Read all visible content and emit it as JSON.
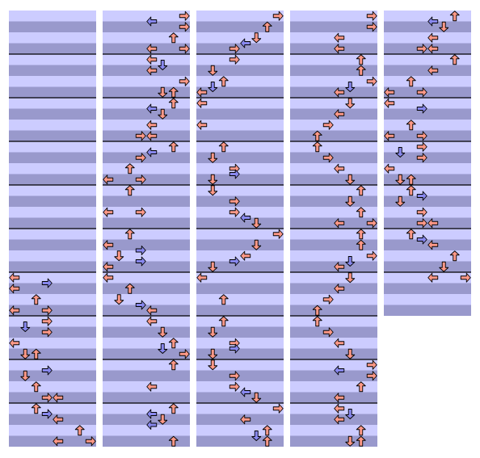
{
  "chart": {
    "lanes_per_panel": 8,
    "beats_per_measure": 4,
    "quarter_color": "#ff9988",
    "eighth_color": "#8888ee",
    "light_stripe": "#ccccff",
    "dark_stripe": "#9999cc",
    "panels": [
      {
        "beats": 40,
        "notes": [
          [
            24,
            0
          ],
          [
            24.5,
            3
          ],
          [
            25,
            0
          ],
          [
            26,
            2
          ],
          [
            27,
            0
          ],
          [
            27,
            3
          ],
          [
            28,
            3
          ],
          [
            28.5,
            1
          ],
          [
            29,
            3
          ],
          [
            30,
            0
          ],
          [
            31,
            1
          ],
          [
            31,
            2
          ],
          [
            32.5,
            3
          ],
          [
            33,
            1
          ],
          [
            34,
            2
          ],
          [
            35,
            3
          ],
          [
            35,
            4
          ],
          [
            36,
            2
          ],
          [
            36.5,
            3
          ],
          [
            37,
            4
          ],
          [
            38,
            6
          ],
          [
            39,
            4
          ],
          [
            39,
            7
          ]
        ]
      },
      {
        "beats": 40,
        "notes": [
          [
            0,
            7
          ],
          [
            0.5,
            4
          ],
          [
            1,
            7
          ],
          [
            2,
            6
          ],
          [
            3,
            4
          ],
          [
            3,
            7
          ],
          [
            4,
            4
          ],
          [
            4.5,
            5
          ],
          [
            5,
            4
          ],
          [
            6,
            7
          ],
          [
            7,
            5
          ],
          [
            7,
            6
          ],
          [
            8,
            6
          ],
          [
            8.5,
            4
          ],
          [
            9,
            5
          ],
          [
            10,
            4
          ],
          [
            11,
            3
          ],
          [
            11,
            4
          ],
          [
            12,
            6
          ],
          [
            12.5,
            4
          ],
          [
            13,
            3
          ],
          [
            14,
            2
          ],
          [
            15,
            0
          ],
          [
            15,
            3
          ],
          [
            16,
            2
          ],
          [
            18,
            0
          ],
          [
            18,
            3
          ],
          [
            20,
            2
          ],
          [
            21,
            0
          ],
          [
            21.5,
            3
          ],
          [
            22,
            1
          ],
          [
            22.5,
            3
          ],
          [
            23,
            0
          ],
          [
            24,
            0
          ],
          [
            25,
            2
          ],
          [
            26,
            1
          ],
          [
            26.5,
            3
          ],
          [
            27,
            4
          ],
          [
            28,
            4
          ],
          [
            29,
            5
          ],
          [
            30,
            6
          ],
          [
            30.5,
            5
          ],
          [
            31,
            7
          ],
          [
            32,
            6
          ],
          [
            34,
            4
          ],
          [
            36,
            6
          ],
          [
            36.5,
            4
          ],
          [
            37,
            5
          ],
          [
            37.5,
            4
          ],
          [
            39,
            6
          ]
        ]
      },
      {
        "beats": 40,
        "notes": [
          [
            0,
            7
          ],
          [
            1,
            6
          ],
          [
            2,
            5
          ],
          [
            2.5,
            4
          ],
          [
            3,
            3
          ],
          [
            4,
            3
          ],
          [
            5,
            1
          ],
          [
            6,
            2
          ],
          [
            6.5,
            1
          ],
          [
            7,
            0
          ],
          [
            8,
            0
          ],
          [
            10,
            0
          ],
          [
            12,
            2
          ],
          [
            13,
            1
          ],
          [
            14,
            3
          ],
          [
            14.5,
            3
          ],
          [
            15,
            1
          ],
          [
            16,
            1
          ],
          [
            17,
            3
          ],
          [
            18,
            3
          ],
          [
            18.5,
            4
          ],
          [
            19,
            5
          ],
          [
            20,
            7
          ],
          [
            21,
            5
          ],
          [
            22,
            4
          ],
          [
            22.5,
            3
          ],
          [
            23,
            1
          ],
          [
            24,
            0
          ],
          [
            26,
            2
          ],
          [
            28,
            2
          ],
          [
            29,
            1
          ],
          [
            30,
            3
          ],
          [
            30.5,
            3
          ],
          [
            31,
            1
          ],
          [
            32,
            1
          ],
          [
            33,
            3
          ],
          [
            34,
            3
          ],
          [
            34.5,
            4
          ],
          [
            35,
            5
          ],
          [
            36,
            7
          ],
          [
            37,
            4
          ],
          [
            38.5,
            5
          ],
          [
            38,
            6
          ],
          [
            39,
            6
          ]
        ]
      },
      {
        "beats": 40,
        "notes": [
          [
            0,
            7
          ],
          [
            1,
            7
          ],
          [
            2,
            4
          ],
          [
            3,
            4
          ],
          [
            4,
            6
          ],
          [
            5,
            6
          ],
          [
            6,
            7
          ],
          [
            6.5,
            5
          ],
          [
            7,
            4
          ],
          [
            8,
            5
          ],
          [
            9,
            4
          ],
          [
            10,
            3
          ],
          [
            11,
            2
          ],
          [
            12,
            2
          ],
          [
            13,
            3
          ],
          [
            14,
            4
          ],
          [
            15,
            5
          ],
          [
            16,
            6
          ],
          [
            17,
            5
          ],
          [
            18,
            6
          ],
          [
            19,
            4
          ],
          [
            19,
            7
          ],
          [
            20,
            6
          ],
          [
            21,
            6
          ],
          [
            22,
            7
          ],
          [
            22.5,
            5
          ],
          [
            23,
            4
          ],
          [
            24,
            5
          ],
          [
            25,
            4
          ],
          [
            26,
            3
          ],
          [
            27,
            2
          ],
          [
            28,
            2
          ],
          [
            29,
            3
          ],
          [
            30,
            4
          ],
          [
            31,
            5
          ],
          [
            32,
            7
          ],
          [
            32.5,
            4
          ],
          [
            33,
            7
          ],
          [
            34,
            6
          ],
          [
            35,
            4
          ],
          [
            36,
            4
          ],
          [
            36.5,
            5
          ],
          [
            37,
            4
          ],
          [
            38,
            6
          ],
          [
            39,
            5
          ],
          [
            39,
            6
          ]
        ]
      },
      {
        "beats": 28,
        "notes": [
          [
            0,
            6
          ],
          [
            0.5,
            4
          ],
          [
            1,
            5
          ],
          [
            2,
            4
          ],
          [
            3,
            3
          ],
          [
            3,
            4
          ],
          [
            4,
            6
          ],
          [
            5,
            4
          ],
          [
            6,
            2
          ],
          [
            7,
            0
          ],
          [
            7,
            3
          ],
          [
            8,
            0
          ],
          [
            8.5,
            3
          ],
          [
            10,
            2
          ],
          [
            11,
            0
          ],
          [
            11,
            3
          ],
          [
            12,
            3
          ],
          [
            12.5,
            1
          ],
          [
            13,
            3
          ],
          [
            14,
            0
          ],
          [
            15,
            1
          ],
          [
            15,
            2
          ],
          [
            16,
            2
          ],
          [
            16.5,
            3
          ],
          [
            17,
            1
          ],
          [
            18,
            3
          ],
          [
            19,
            3
          ],
          [
            19,
            4
          ],
          [
            20,
            2
          ],
          [
            20.5,
            3
          ],
          [
            21,
            4
          ],
          [
            22,
            6
          ],
          [
            23,
            5
          ],
          [
            24,
            4
          ],
          [
            24,
            7
          ]
        ]
      }
    ]
  }
}
